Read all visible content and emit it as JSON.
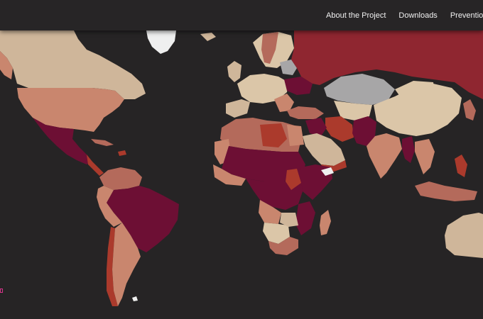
{
  "nav": {
    "items": [
      {
        "label": "About the Project"
      },
      {
        "label": "Downloads"
      },
      {
        "label": "Prevention Gai"
      }
    ]
  },
  "colors": {
    "background": "#262425",
    "topbar": "#272526",
    "nav_text": "#f2f2f2",
    "tan": "#cfb69a",
    "light_tan": "#dbc6a8",
    "salmon": "#c9866e",
    "rose": "#b46a5b",
    "red": "#8f2630",
    "crimson": "#ab3a2c",
    "maroon": "#6d0f34",
    "gray": "#a7a6a7",
    "white": "#f0f0f0"
  }
}
